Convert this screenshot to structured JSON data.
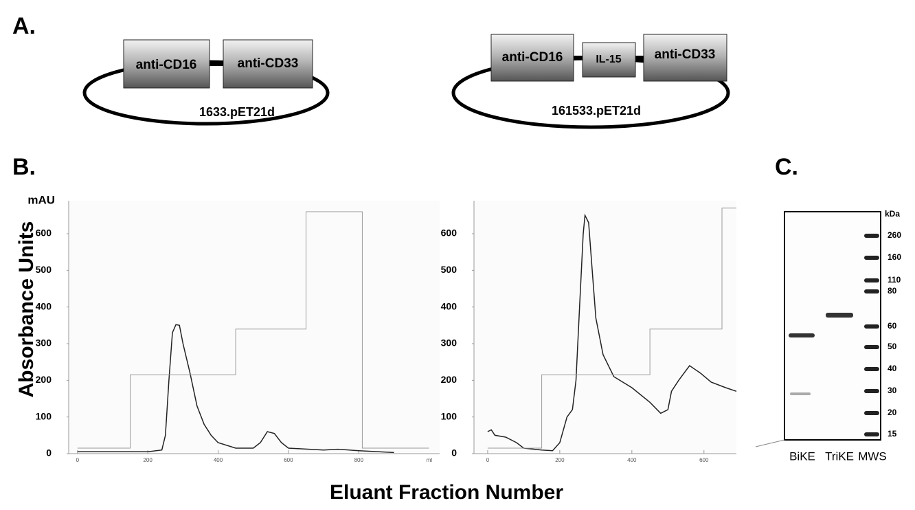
{
  "panels": {
    "a": "A.",
    "b": "B.",
    "c": "C."
  },
  "plasmids": [
    {
      "parts": [
        "anti-CD16",
        "anti-CD33"
      ],
      "name": "1633.pET21d"
    },
    {
      "parts": [
        "anti-CD16",
        "IL-15",
        "anti-CD33"
      ],
      "name": "161533.pET21d"
    }
  ],
  "y_axis_label": "Absorbance Units",
  "x_axis_label": "Eluant Fraction Number",
  "chart_data": [
    {
      "type": "line",
      "ylabel": "mAU",
      "xunit": "ml",
      "xlim": [
        -25,
        1030
      ],
      "ylim": [
        0,
        690
      ],
      "xticks": [
        0,
        200,
        400,
        600,
        800
      ],
      "yticks": [
        0,
        100,
        200,
        300,
        400,
        500,
        600
      ],
      "series": [
        {
          "color": "#222222",
          "x": [
            0,
            200,
            240,
            250,
            260,
            270,
            280,
            290,
            300,
            320,
            340,
            360,
            380,
            400,
            450,
            500,
            520,
            540,
            560,
            580,
            600,
            700,
            740,
            800,
            900
          ],
          "values": [
            5,
            5,
            10,
            50,
            200,
            330,
            352,
            350,
            300,
            220,
            130,
            80,
            50,
            30,
            15,
            15,
            30,
            60,
            55,
            30,
            15,
            10,
            12,
            8,
            3
          ]
        },
        {
          "color": "#999999",
          "x": [
            0,
            150,
            150,
            450,
            450,
            650,
            650,
            810,
            810,
            1000
          ],
          "values": [
            15,
            15,
            215,
            215,
            340,
            340,
            660,
            660,
            15,
            15
          ]
        }
      ]
    },
    {
      "type": "line",
      "xlim": [
        -38,
        690
      ],
      "ylim": [
        0,
        690
      ],
      "xticks": [
        0,
        200,
        400,
        600
      ],
      "yticks": [
        0,
        100,
        200,
        300,
        400,
        500,
        600
      ],
      "series": [
        {
          "color": "#222222",
          "x": [
            0,
            10,
            20,
            50,
            80,
            100,
            150,
            180,
            200,
            220,
            235,
            245,
            255,
            265,
            270,
            280,
            290,
            300,
            320,
            350,
            400,
            450,
            480,
            500,
            510,
            530,
            560,
            590,
            620,
            660,
            690
          ],
          "values": [
            60,
            65,
            50,
            45,
            30,
            15,
            10,
            8,
            30,
            100,
            120,
            200,
            400,
            600,
            650,
            630,
            500,
            370,
            270,
            210,
            180,
            140,
            110,
            120,
            170,
            200,
            240,
            220,
            195,
            180,
            170
          ]
        },
        {
          "color": "#999999",
          "x": [
            0,
            150,
            150,
            450,
            450,
            650,
            650,
            690
          ],
          "values": [
            15,
            15,
            215,
            215,
            340,
            340,
            670,
            670
          ]
        }
      ]
    }
  ],
  "gel": {
    "unit": "kDa",
    "markers": [
      "260",
      "160",
      "110",
      "80",
      "60",
      "50",
      "40",
      "30",
      "20",
      "15"
    ],
    "lanes": [
      "BiKE",
      "TriKE",
      "MWS"
    ]
  }
}
